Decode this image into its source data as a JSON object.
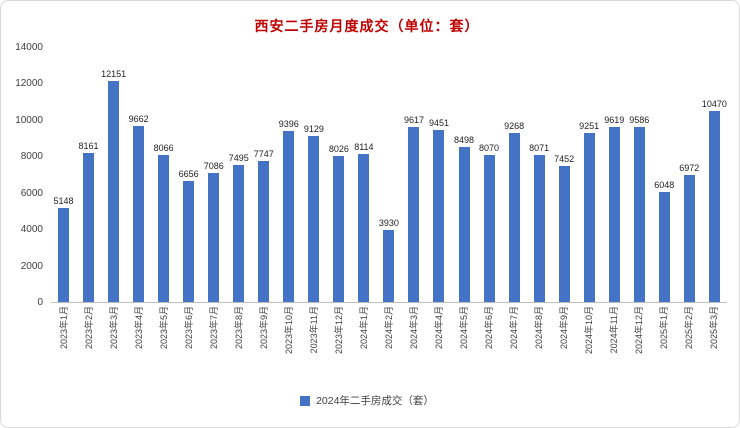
{
  "chart_data": {
    "type": "bar",
    "title": "西安二手房月度成交（单位：套）",
    "legend": "2024年二手房成交（套）",
    "legend_position": "bottom",
    "categories": [
      "2023年1月",
      "2023年2月",
      "2023年3月",
      "2023年4月",
      "2023年5月",
      "2023年6月",
      "2023年7月",
      "2023年8月",
      "2023年9月",
      "2023年10月",
      "2023年11月",
      "2023年12月",
      "2024年1月",
      "2024年2月",
      "2024年3月",
      "2024年4月",
      "2024年5月",
      "2024年6月",
      "2024年7月",
      "2024年8月",
      "2024年9月",
      "2024年10月",
      "2024年11月",
      "2024年12月",
      "2025年1月",
      "2025年2月",
      "2025年3月"
    ],
    "values": [
      5148,
      8161,
      12151,
      9662,
      8066,
      6656,
      7086,
      7495,
      7747,
      9396,
      9129,
      8026,
      8114,
      3930,
      9617,
      9451,
      8498,
      8070,
      9268,
      8071,
      7452,
      9251,
      9619,
      9586,
      6048,
      6972,
      10470
    ],
    "xlabel": "",
    "ylabel": "",
    "ylim": [
      0,
      14000
    ],
    "y_tick_step": 2000,
    "grid": false,
    "data_labels": true,
    "bar_color": "#4472C4",
    "title_color": "#C00000"
  }
}
